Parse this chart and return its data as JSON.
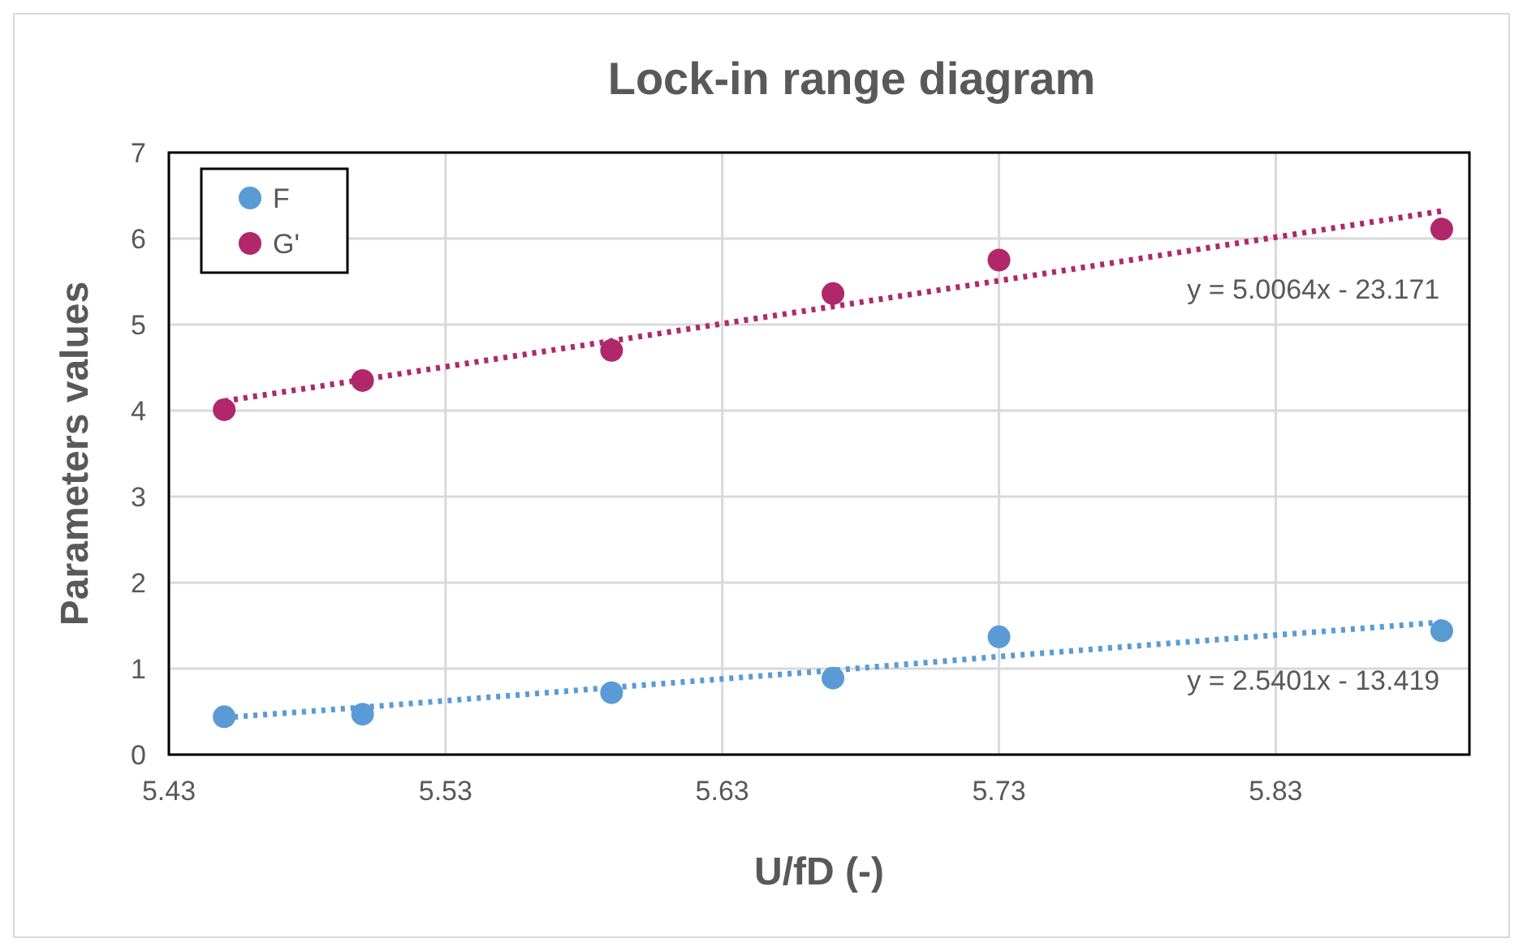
{
  "chart_data": {
    "type": "scatter",
    "title": "Lock-in range diagram",
    "xlabel": "U/fD (-)",
    "ylabel": "Parameters values",
    "x": [
      5.45,
      5.5,
      5.59,
      5.67,
      5.73,
      5.89
    ],
    "series": [
      {
        "name": "F",
        "color": "#5b9bd5",
        "values": [
          0.44,
          0.47,
          0.72,
          0.89,
          1.37,
          1.44
        ]
      },
      {
        "name": "G'",
        "color": "#b0286b",
        "values": [
          4.01,
          4.35,
          4.7,
          5.36,
          5.75,
          6.11
        ]
      },
      {
        "type": "line",
        "color": "#5b9bd5",
        "values": [
          0.43,
          0.55,
          0.78,
          0.98,
          1.14,
          1.54
        ],
        "line_style": "dotted",
        "marker": "none"
      },
      {
        "type": "line",
        "color": "#b0286b",
        "values": [
          4.11,
          4.36,
          4.81,
          5.21,
          5.51,
          6.32
        ],
        "line_style": "dotted",
        "marker": "none"
      }
    ],
    "xlim": [
      5.43,
      5.9
    ],
    "xticks": [
      5.43,
      5.53,
      5.63,
      5.73,
      5.83
    ],
    "ylim": [
      0,
      7
    ],
    "yticks": [
      0,
      1,
      2,
      3,
      4,
      5,
      6,
      7
    ],
    "grid": true,
    "legend": "top left",
    "marker": "circle",
    "annotations": [
      "y = 5.0064x - 23.171",
      "y = 2.5401x - 13.419"
    ]
  }
}
